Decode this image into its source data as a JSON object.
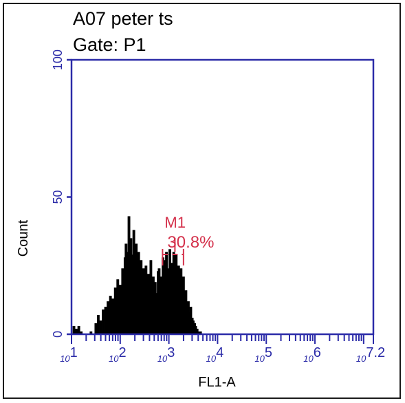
{
  "header": {
    "title": "A07 peter ts",
    "gate": "Gate: P1"
  },
  "chart_data": {
    "type": "histogram",
    "title": "A07 peter ts",
    "subtitle": "Gate: P1",
    "xlabel": "FL1-A",
    "ylabel": "Count",
    "xscale": "log",
    "xlim": [
      1,
      7.2
    ],
    "ylim": [
      0,
      100
    ],
    "x_tick_labels": [
      "10^1",
      "10^2",
      "10^3",
      "10^4",
      "10^5",
      "10^6",
      "10^7.2"
    ],
    "y_tick_labels": [
      "0",
      "50",
      "100"
    ],
    "y_ticks": [
      0,
      50,
      100
    ],
    "x_ticks": [
      1,
      2,
      3,
      4,
      5,
      6,
      7.2
    ],
    "marker": {
      "name": "M1",
      "percent": "30.8%",
      "range_log": [
        2.87,
        3.3
      ]
    },
    "histogram": {
      "x_log": [
        1.05,
        1.1,
        1.15,
        1.2,
        1.3,
        1.4,
        1.5,
        1.55,
        1.6,
        1.65,
        1.7,
        1.75,
        1.8,
        1.85,
        1.9,
        1.95,
        2.0,
        2.05,
        2.1,
        2.12,
        2.15,
        2.18,
        2.2,
        2.22,
        2.25,
        2.28,
        2.3,
        2.33,
        2.35,
        2.38,
        2.4,
        2.43,
        2.45,
        2.48,
        2.5,
        2.53,
        2.55,
        2.58,
        2.6,
        2.63,
        2.65,
        2.68,
        2.7,
        2.72,
        2.75,
        2.78,
        2.8,
        2.83,
        2.85,
        2.88,
        2.9,
        2.93,
        2.95,
        2.98,
        3.0,
        3.02,
        3.05,
        3.08,
        3.1,
        3.13,
        3.15,
        3.18,
        3.2,
        3.23,
        3.25,
        3.28,
        3.3,
        3.33,
        3.35,
        3.38,
        3.4,
        3.43,
        3.45,
        3.48,
        3.5,
        3.53,
        3.55,
        3.58,
        3.6,
        3.65,
        3.7
      ],
      "counts": [
        3,
        2,
        3,
        1,
        0,
        1,
        4,
        7,
        5,
        9,
        10,
        12,
        14,
        13,
        17,
        20,
        18,
        24,
        28,
        33,
        30,
        43,
        27,
        35,
        29,
        38,
        25,
        33,
        22,
        30,
        20,
        27,
        22,
        24,
        18,
        25,
        14,
        22,
        16,
        27,
        15,
        21,
        13,
        19,
        15,
        23,
        24,
        21,
        14,
        28,
        26,
        27,
        30,
        20,
        24,
        31,
        26,
        23,
        30,
        22,
        29,
        20,
        25,
        17,
        24,
        14,
        21,
        13,
        16,
        10,
        12,
        8,
        10,
        6,
        5,
        4,
        3,
        2,
        1,
        1,
        0
      ]
    },
    "colors": {
      "axis": "#2b2ba8",
      "bars": "#000000",
      "marker": "#d4314b",
      "text": "#000000"
    }
  }
}
